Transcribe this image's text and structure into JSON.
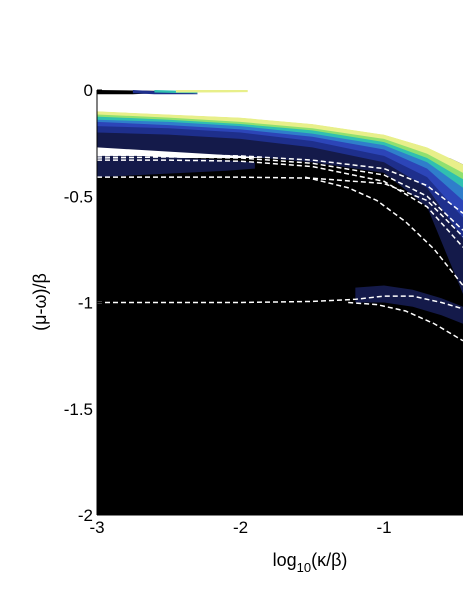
{
  "chart_data": {
    "type": "heatmap",
    "title": "",
    "xlabel": {
      "main": "log",
      "sub": "10",
      "rest": "(κ/β)"
    },
    "ylabel": "(μ-ω)/β",
    "xlim": [
      -3,
      -0.45
    ],
    "ylim": [
      -2,
      0
    ],
    "x_ticks": [
      {
        "value": -3,
        "label": "-3"
      },
      {
        "value": -2,
        "label": "-2"
      },
      {
        "value": -1,
        "label": "-1"
      }
    ],
    "y_ticks": [
      {
        "value": 0,
        "label": "0"
      },
      {
        "value": -0.5,
        "label": "-0.5"
      },
      {
        "value": -1,
        "label": "-1"
      },
      {
        "value": -1.5,
        "label": "-1.5"
      },
      {
        "value": -2,
        "label": "-2"
      }
    ],
    "colormap": [
      "#000000",
      "#141a4a",
      "#1e2f8c",
      "#2c45b8",
      "#2f7ecb",
      "#30c0b0",
      "#8fe070",
      "#e8ef8a",
      "#ffffff"
    ],
    "grid": false,
    "legend": "none",
    "filled_bands": [
      {
        "level": 1,
        "x": [
          -3,
          -2.5,
          -2,
          -1.5,
          -1,
          -0.7,
          -0.45
        ],
        "upper": [
          -0.14,
          -0.16,
          -0.19,
          -0.24,
          -0.32,
          -0.45,
          -0.68
        ],
        "lower": [
          -0.27,
          -0.29,
          -0.31,
          -0.34,
          -0.39,
          -0.55,
          -0.96
        ]
      },
      {
        "level": 2,
        "x": [
          -3,
          -2.5,
          -2,
          -1.5,
          -1,
          -0.7,
          -0.45
        ],
        "upper": [
          -0.13,
          -0.15,
          -0.175,
          -0.22,
          -0.29,
          -0.39,
          -0.55
        ],
        "lower": [
          -0.2,
          -0.21,
          -0.23,
          -0.27,
          -0.34,
          -0.46,
          -0.7
        ]
      },
      {
        "level": 3,
        "x": [
          -3,
          -2.5,
          -2,
          -1.5,
          -1,
          -0.7,
          -0.45
        ],
        "upper": [
          -0.12,
          -0.14,
          -0.16,
          -0.2,
          -0.27,
          -0.36,
          -0.5
        ],
        "lower": [
          -0.17,
          -0.18,
          -0.2,
          -0.24,
          -0.31,
          -0.41,
          -0.6
        ]
      },
      {
        "level": 4,
        "x": [
          -3,
          -2.5,
          -2,
          -1.5,
          -1,
          -0.7,
          -0.45
        ],
        "upper": [
          -0.115,
          -0.13,
          -0.15,
          -0.19,
          -0.25,
          -0.33,
          -0.45
        ],
        "lower": [
          -0.15,
          -0.165,
          -0.185,
          -0.22,
          -0.28,
          -0.37,
          -0.52
        ]
      },
      {
        "level": 5,
        "x": [
          -3,
          -2.5,
          -2,
          -1.5,
          -1,
          -0.7,
          -0.45
        ],
        "upper": [
          -0.11,
          -0.125,
          -0.145,
          -0.18,
          -0.235,
          -0.31,
          -0.41
        ],
        "lower": [
          -0.14,
          -0.15,
          -0.17,
          -0.205,
          -0.26,
          -0.34,
          -0.46
        ]
      },
      {
        "level": 6,
        "x": [
          -3,
          -2.5,
          -2,
          -1.5,
          -1,
          -0.7,
          -0.45
        ],
        "upper": [
          -0.105,
          -0.12,
          -0.14,
          -0.17,
          -0.22,
          -0.29,
          -0.38
        ],
        "lower": [
          -0.125,
          -0.14,
          -0.16,
          -0.19,
          -0.245,
          -0.32,
          -0.42
        ]
      },
      {
        "level": 7,
        "x": [
          -3,
          -2.5,
          -2,
          -1.5,
          -1,
          -0.7,
          -0.45
        ],
        "upper": [
          -0.1,
          -0.115,
          -0.13,
          -0.16,
          -0.21,
          -0.27,
          -0.35
        ],
        "lower": [
          -0.115,
          -0.13,
          -0.15,
          -0.18,
          -0.23,
          -0.3,
          -0.39
        ]
      },
      {
        "level": 1,
        "x": [
          -1.2,
          -1,
          -0.8,
          -0.6,
          -0.45
        ],
        "upper": [
          -0.93,
          -0.92,
          -0.94,
          -0.98,
          -1.02
        ],
        "lower": [
          -1.0,
          -1.0,
          -1.02,
          -1.06,
          -1.1
        ]
      },
      {
        "level": 1,
        "x": [
          -3,
          -2.7,
          -2.4,
          -2.1,
          -1.9
        ],
        "upper": [
          -0.31,
          -0.31,
          -0.32,
          -0.33,
          -0.34
        ],
        "lower": [
          -0.41,
          -0.4,
          -0.39,
          -0.38,
          -0.37
        ]
      },
      {
        "level": 2,
        "x": [
          -2.75,
          -2.6,
          -2.45,
          -2.3
        ],
        "upper": [
          0.0,
          -0.005,
          -0.01,
          -0.015
        ],
        "lower": [
          -0.015,
          -0.02,
          -0.02,
          -0.02
        ]
      },
      {
        "level": 5,
        "x": [
          -2.6,
          -2.45,
          -2.3
        ],
        "upper": [
          -0.0,
          -0.003,
          -0.006
        ],
        "lower": [
          -0.012,
          -0.014,
          -0.015
        ]
      },
      {
        "level": 7,
        "x": [
          -2.45,
          -2.3,
          -2.1,
          -1.95
        ],
        "upper": [
          0.0,
          0.0,
          0.0,
          0.0
        ],
        "lower": [
          -0.012,
          -0.012,
          -0.011,
          -0.01
        ]
      }
    ],
    "black_regions": [
      {
        "x": [
          -3,
          -3,
          -2.75,
          -2.6,
          -2.45,
          -3
        ],
        "y": [
          0,
          -0.02,
          -0.02,
          -0.015,
          -0.005,
          0
        ]
      }
    ],
    "series": [
      {
        "style": "dashed",
        "color": "#ffffff",
        "x": [
          -3,
          -2.5,
          -2,
          -1.5,
          -1,
          -0.7,
          -0.45
        ],
        "y": [
          -0.31,
          -0.305,
          -0.31,
          -0.33,
          -0.37,
          -0.45,
          -0.58
        ]
      },
      {
        "style": "dashed",
        "color": "#ffffff",
        "x": [
          -3,
          -2.5,
          -2,
          -1.5,
          -1,
          -0.7,
          -0.45
        ],
        "y": [
          -0.32,
          -0.315,
          -0.32,
          -0.345,
          -0.4,
          -0.5,
          -0.66
        ]
      },
      {
        "style": "dashed",
        "color": "#ffffff",
        "x": [
          -3,
          -2.5,
          -2,
          -1.5,
          -1,
          -0.7,
          -0.45
        ],
        "y": [
          -0.33,
          -0.33,
          -0.335,
          -0.36,
          -0.43,
          -0.55,
          -0.74
        ]
      },
      {
        "style": "dashed",
        "color": "#ffffff",
        "x": [
          -3,
          -2.5,
          -2,
          -1.5,
          -1,
          -0.7,
          -0.45
        ],
        "y": [
          -0.41,
          -0.41,
          -0.41,
          -0.415,
          -0.44,
          -0.52,
          -0.69
        ]
      },
      {
        "style": "dashed",
        "color": "#ffffff",
        "x": [
          -1.55,
          -1.25,
          -1.05,
          -0.85,
          -0.65,
          -0.45
        ],
        "y": [
          -0.41,
          -0.46,
          -0.52,
          -0.62,
          -0.75,
          -0.92
        ]
      },
      {
        "style": "dashed",
        "color": "#ffffff",
        "x": [
          -3,
          -2.5,
          -2,
          -1.5,
          -1.2,
          -1,
          -0.8,
          -0.6,
          -0.45
        ],
        "y": [
          -1.0,
          -1.0,
          -1.0,
          -0.995,
          -0.985,
          -0.97,
          -0.97,
          -1.0,
          -1.03
        ]
      },
      {
        "style": "dashed",
        "color": "#ffffff",
        "x": [
          -1.25,
          -1.05,
          -0.85,
          -0.65,
          -0.45
        ],
        "y": [
          -1.0,
          -1.01,
          -1.04,
          -1.1,
          -1.18
        ]
      }
    ]
  }
}
